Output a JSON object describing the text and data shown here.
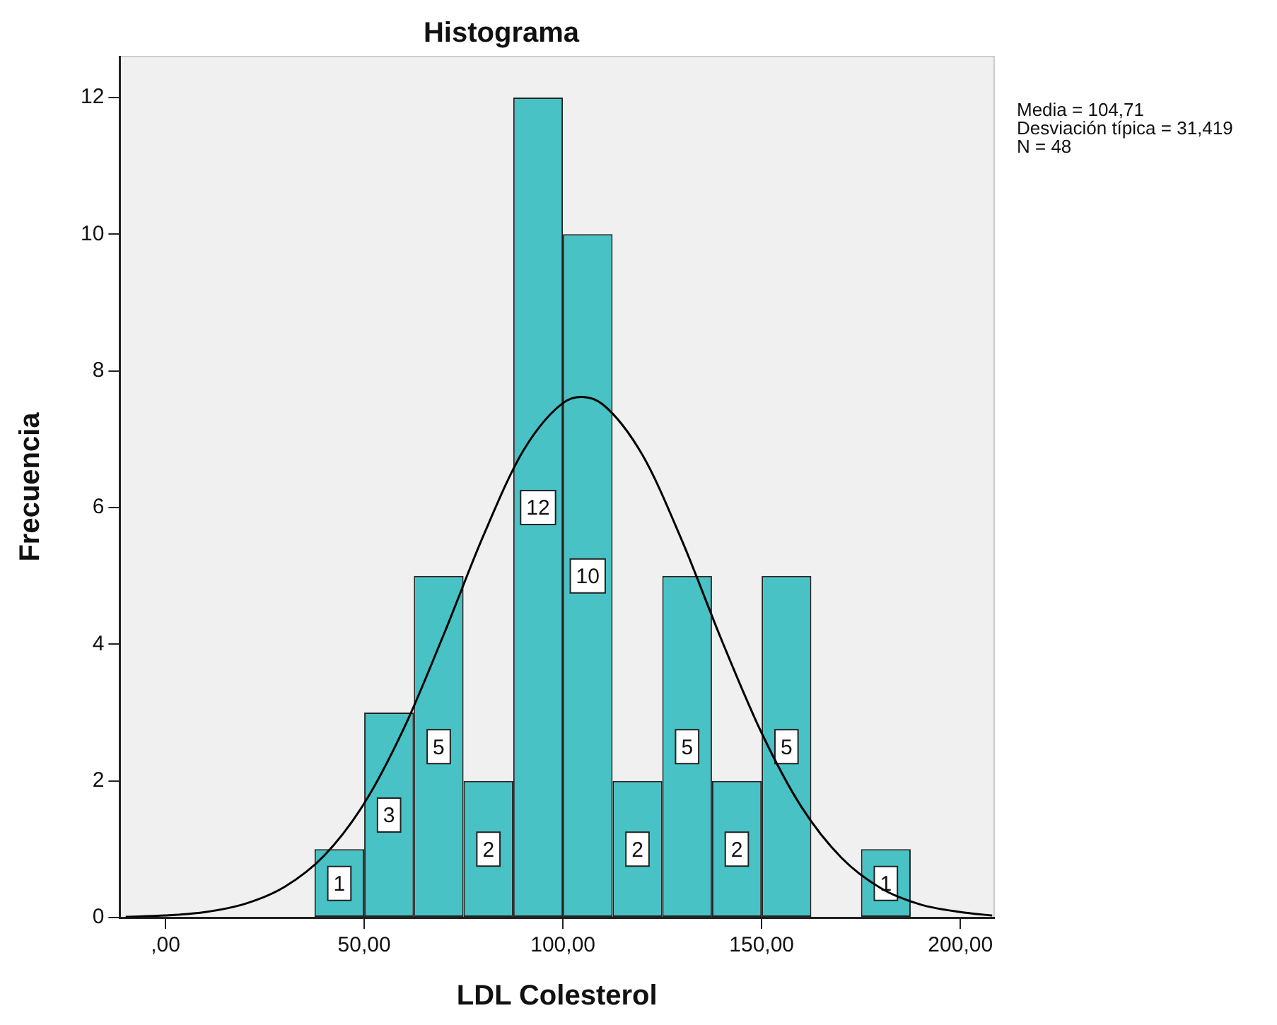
{
  "chart_data": {
    "type": "histogram",
    "title": "Histograma",
    "xlabel": "LDL Colesterol",
    "ylabel": "Frecuencia",
    "bins": [
      37.5,
      50,
      62.5,
      75,
      87.5,
      100,
      112.5,
      125,
      137.5,
      150,
      162.5,
      175,
      187.5
    ],
    "values": [
      1,
      3,
      5,
      2,
      12,
      10,
      2,
      5,
      2,
      5,
      0,
      1
    ],
    "value_labels": [
      "1",
      "3",
      "5",
      "2",
      "12",
      "10",
      "2",
      "5",
      "2",
      "5",
      null,
      "1"
    ],
    "color": "#48c2c5",
    "series": [
      {
        "type": "line",
        "color": "#000000",
        "x": [
          -10,
          0,
          10,
          20,
          30,
          40,
          50,
          60,
          70,
          80,
          90,
          100,
          104.71,
          110,
          120,
          130,
          140,
          150,
          160,
          170,
          180,
          190,
          200,
          208
        ],
        "values": [
          0.01,
          0.03,
          0.08,
          0.2,
          0.45,
          0.91,
          1.67,
          2.77,
          4.14,
          5.59,
          6.83,
          7.53,
          7.62,
          7.51,
          6.77,
          5.51,
          4.05,
          2.7,
          1.62,
          0.88,
          0.43,
          0.19,
          0.08,
          0.03
        ]
      }
    ],
    "xlim": [
      -11.5,
      208.5
    ],
    "xticks": [
      {
        "value": 0,
        "label": ",00"
      },
      {
        "value": 50,
        "label": "50,00"
      },
      {
        "value": 100,
        "label": "100,00"
      },
      {
        "value": 150,
        "label": "150,00"
      },
      {
        "value": 200,
        "label": "200,00"
      }
    ],
    "ylim": [
      0,
      12.6
    ],
    "yticks": [
      0,
      2,
      4,
      6,
      8,
      10,
      12
    ],
    "grid": false,
    "legend": false,
    "marker": "none",
    "line_style": "solid",
    "annotations": [
      "Media = 104,71",
      "Desviación típica = 31,419",
      "N = 48"
    ]
  }
}
